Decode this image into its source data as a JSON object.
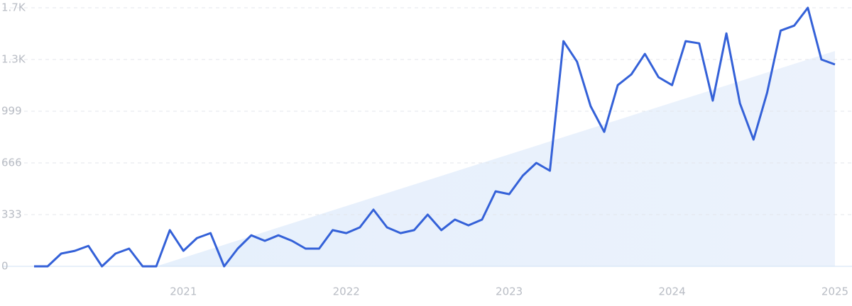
{
  "chart_data": {
    "type": "line",
    "categories": [
      null,
      null,
      null,
      null,
      null,
      null,
      null,
      null,
      null,
      null,
      null,
      "2021",
      null,
      null,
      null,
      null,
      null,
      null,
      null,
      null,
      null,
      null,
      null,
      "2022",
      null,
      null,
      null,
      null,
      null,
      null,
      null,
      null,
      null,
      null,
      null,
      "2023",
      null,
      null,
      null,
      null,
      null,
      null,
      null,
      null,
      null,
      null,
      null,
      "2024",
      null,
      null,
      null,
      null,
      null,
      null,
      null,
      null,
      null,
      null,
      null,
      "2025"
    ],
    "values": [
      0,
      0,
      82,
      100,
      132,
      0,
      82,
      114,
      0,
      0,
      233,
      100,
      182,
      214,
      0,
      114,
      200,
      164,
      200,
      164,
      114,
      114,
      233,
      214,
      251,
      365,
      251,
      214,
      233,
      333,
      233,
      301,
      264,
      301,
      483,
      465,
      584,
      666,
      616,
      1450,
      1318,
      1031,
      866,
      1167,
      1236,
      1368,
      1218,
      1167,
      1450,
      1436,
      1067,
      1500,
      1049,
      816,
      1117,
      1518,
      1550,
      1665,
      1332,
      1300
    ],
    "color": "#3461d8",
    "ylim": [
      0,
      1665
    ],
    "yticks": [
      0,
      333,
      666,
      999,
      {
        "value": 1332,
        "label": "1.3K"
      },
      {
        "value": 1665,
        "label": "1.7K"
      }
    ],
    "grid": true
  }
}
